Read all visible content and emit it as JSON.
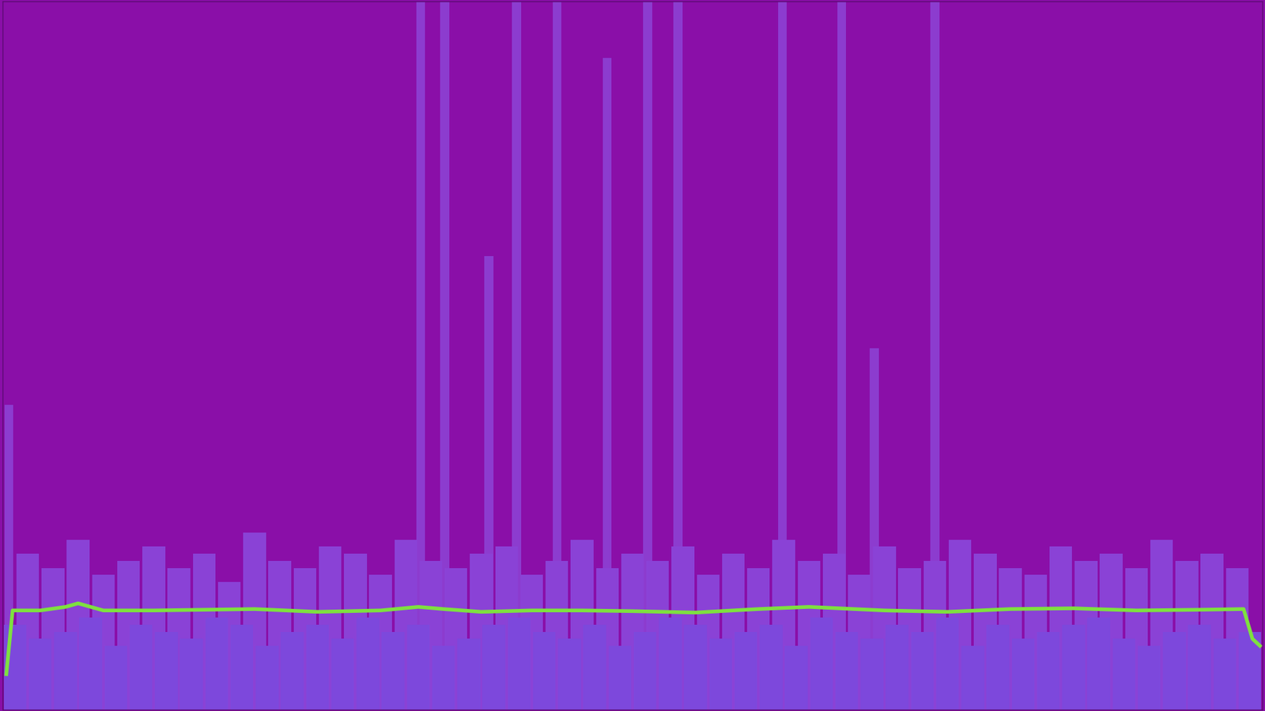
{
  "chart_data": {
    "type": "bar",
    "color": "#8a0fa8",
    "tick_labels": false,
    "xlim": [
      0,
      100
    ],
    "ylim": [
      0,
      100
    ],
    "series": [
      {
        "type": "bar",
        "color": "#8c3ccf",
        "x": [
          0.5,
          33.2,
          35.1,
          38.6,
          40.8,
          44.0,
          48.0,
          51.2,
          53.6,
          61.9,
          66.6,
          69.2,
          74.0
        ],
        "values": [
          43,
          100,
          100,
          64,
          100,
          100,
          92,
          100,
          100,
          100,
          100,
          51,
          100
        ]
      },
      {
        "type": "bar",
        "color": "#8a42d6",
        "x": [
          2,
          4,
          6,
          8,
          10,
          12,
          14,
          16,
          18,
          20,
          22,
          24,
          26,
          28,
          30,
          32,
          34,
          36,
          38,
          40,
          42,
          44,
          46,
          48,
          50,
          52,
          54,
          56,
          58,
          60,
          62,
          64,
          66,
          68,
          70,
          72,
          74,
          76,
          78,
          80,
          82,
          84,
          86,
          88,
          90,
          92,
          94,
          96,
          98
        ],
        "values": [
          22,
          20,
          24,
          19,
          21,
          23,
          20,
          22,
          18,
          25,
          21,
          20,
          23,
          22,
          19,
          24,
          21,
          20,
          22,
          23,
          19,
          21,
          24,
          20,
          22,
          21,
          23,
          19,
          22,
          20,
          24,
          21,
          22,
          19,
          23,
          20,
          21,
          24,
          22,
          20,
          19,
          23,
          21,
          22,
          20,
          24,
          21,
          22,
          20
        ]
      },
      {
        "type": "bar",
        "color": "#7d48dc",
        "x": [
          1,
          3,
          5,
          7,
          9,
          11,
          13,
          15,
          17,
          19,
          21,
          23,
          25,
          27,
          29,
          31,
          33,
          35,
          37,
          39,
          41,
          43,
          45,
          47,
          49,
          51,
          53,
          55,
          57,
          59,
          61,
          63,
          65,
          67,
          69,
          71,
          73,
          75,
          77,
          79,
          81,
          83,
          85,
          87,
          89,
          91,
          93,
          95,
          97,
          99
        ],
        "values": [
          12,
          10,
          11,
          13,
          9,
          12,
          11,
          10,
          13,
          12,
          9,
          11,
          12,
          10,
          13,
          11,
          12,
          9,
          10,
          12,
          13,
          11,
          10,
          12,
          9,
          11,
          13,
          12,
          10,
          11,
          12,
          9,
          13,
          11,
          10,
          12,
          11,
          13,
          9,
          12,
          10,
          11,
          12,
          13,
          10,
          9,
          11,
          12,
          10,
          11
        ]
      },
      {
        "type": "line",
        "color": "#7ee040",
        "x": [
          0.3,
          0.8,
          3,
          5,
          6,
          8,
          12,
          20,
          25,
          30,
          33,
          35,
          38,
          42,
          46,
          50,
          55,
          60,
          64,
          70,
          75,
          80,
          85,
          90,
          95,
          98.5,
          99.2,
          99.8
        ],
        "values": [
          5,
          14,
          14,
          14.5,
          15,
          14,
          14,
          14.2,
          13.8,
          14,
          14.5,
          14.2,
          13.8,
          14,
          14,
          13.9,
          13.7,
          14.2,
          14.5,
          14,
          13.8,
          14.2,
          14.3,
          14,
          14.1,
          14.2,
          10,
          9
        ]
      }
    ]
  }
}
